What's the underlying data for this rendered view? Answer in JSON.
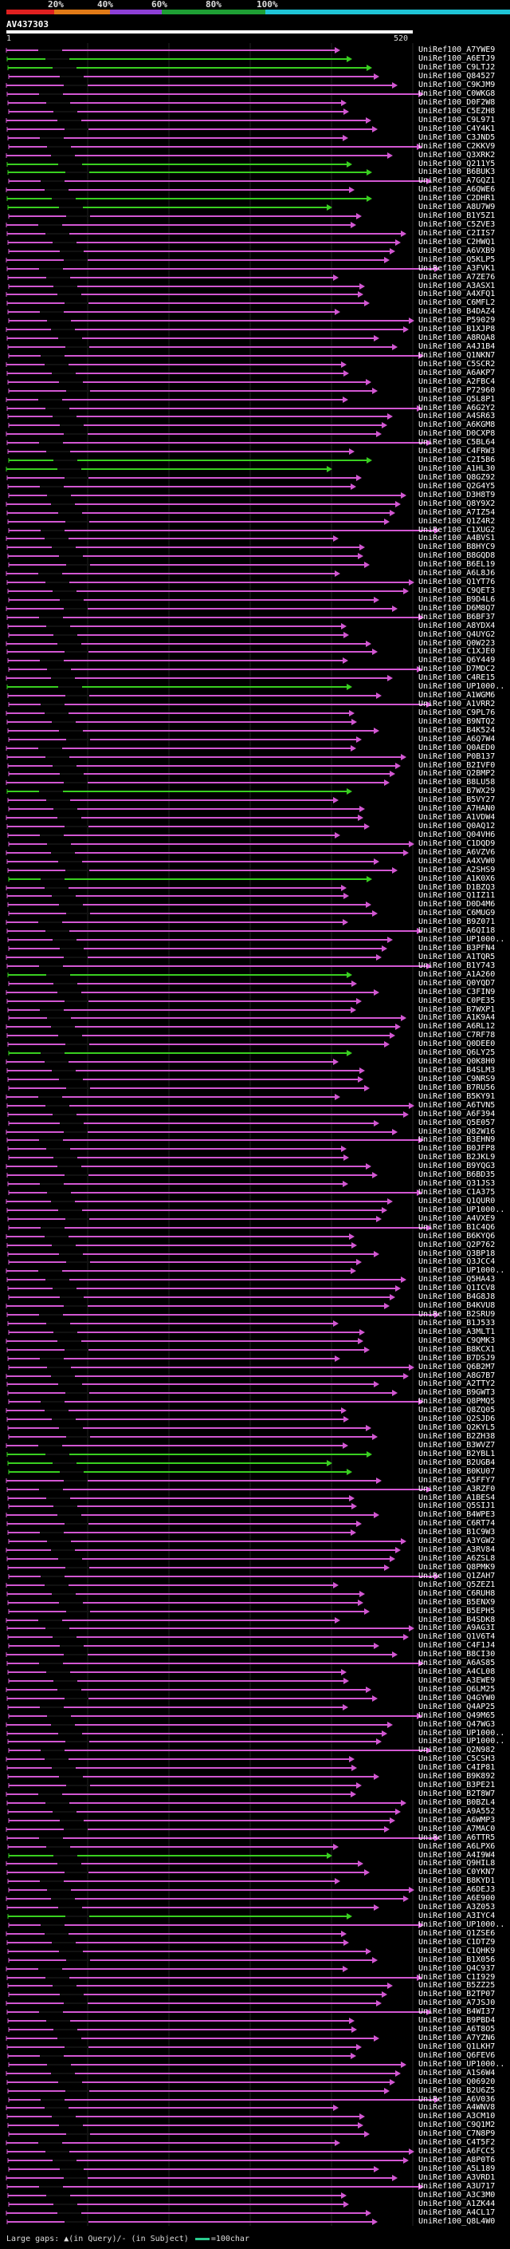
{
  "colors": {
    "background": "#000000",
    "hit_line": "#d257d2",
    "green_line": "#39cf20",
    "query_bar": "#ffffff",
    "identity_red": "#e02020",
    "identity_orange": "#e07a17",
    "identity_purple": "#8d3fd6",
    "identity_green": "#1e9e34",
    "identity_cyan": "#1fc4d6",
    "legend_green": "#2acb8e"
  },
  "identity_scale": [
    "20%",
    "40%",
    "60%",
    "80%",
    "100%"
  ],
  "query": {
    "id": "AV437303",
    "range_start": "1",
    "range_end": "520"
  },
  "hits": [
    "UniRef100_A7YWE9",
    "UniRef100_A6ETJ9",
    "UniRef100_C9LTJ2",
    "UniRef100_Q84527",
    "UniRef100_C9KJM9",
    "UniRef100_C0WKG8",
    "UniRef100_D0F2W8",
    "UniRef100_C5EZH8",
    "UniRef100_C9L971",
    "UniRef100_C4Y4K1",
    "UniRef100_C3JND5",
    "UniRef100_C2KKV9",
    "UniRef100_Q3XRK2",
    "UniRef100_Q211Y5",
    "UniRef100_B6BUK3",
    "UniRef100_A7GQZ1",
    "UniRef100_A6QWE6",
    "UniRef100_C2DHR1",
    "UniRef100_A8U7W9",
    "UniRef100_B1Y5Z1",
    "UniRef100_C5ZVE3",
    "UniRef100_C2IIS7",
    "UniRef100_C2HWQ1",
    "UniRef100_A6VXB9",
    "UniRef100_Q5KLP5",
    "UniRef100_A3FVK1",
    "UniRef100_A7ZE76",
    "UniRef100_A3ASX1",
    "UniRef100_A4XFQ1",
    "UniRef100_C6MFL2",
    "UniRef100_B4DAZ4",
    "UniRef100_P59029",
    "UniRef100_B1XJP8",
    "UniRef100_A8RQA8",
    "UniRef100_A4J1B4",
    "UniRef100_Q1NKN7",
    "UniRef100_C5SCR2",
    "UniRef100_A6AKP7",
    "UniRef100_A2FBC4",
    "UniRef100_P72960",
    "UniRef100_Q5L8P1",
    "UniRef100_A6G2Y2",
    "UniRef100_A4SR63",
    "UniRef100_A6KGM8",
    "UniRef100_D0CXP8",
    "UniRef100_C5BL64",
    "UniRef100_C4FRW3",
    "UniRef100_C2I5B6",
    "UniRef100_A1HL30",
    "UniRef100_Q8GZ92",
    "UniRef100_Q2G4Y5",
    "UniRef100_D3H8T9",
    "UniRef100_Q8Y9X2",
    "UniRef100_A7IZ54",
    "UniRef100_Q1Z4R2",
    "UniRef100_C1XUG2",
    "UniRef100_A4BVS1",
    "UniRef100_B8HYC9",
    "UniRef100_B8GQD8",
    "UniRef100_B6EL19",
    "UniRef100_A6L8J6",
    "UniRef100_Q1YT76",
    "UniRef100_C9QET3",
    "UniRef100_B9D4L6",
    "UniRef100_D6M8Q7",
    "UniRef100_B6BF37",
    "UniRef100_A8YDX4",
    "UniRef100_Q4UYG2",
    "UniRef100_Q0W223",
    "UniRef100_C1XJE0",
    "UniRef100_Q6Y449",
    "UniRef100_D7MDC2",
    "UniRef100_C4RE15",
    "UniRef100_UP1000..",
    "UniRef100_A1WGM6",
    "UniRef100_A1VRR2",
    "UniRef100_C9PL76",
    "UniRef100_B9NTQ2",
    "UniRef100_B4K524",
    "UniRef100_A6Q7W4",
    "UniRef100_Q0AED0",
    "UniRef100_P0B137",
    "UniRef100_B2IVF0",
    "UniRef100_Q2BMP2",
    "UniRef100_B8LU58",
    "UniRef100_B7WX29",
    "UniRef100_B5VY27",
    "UniRef100_A7HAN0",
    "UniRef100_A1VDW4",
    "UniRef100_Q0AQ12",
    "UniRef100_Q04VH6",
    "UniRef100_C1DQD9",
    "UniRef100_A6VZV6",
    "UniRef100_A4XVW0",
    "UniRef100_A2SHS9",
    "UniRef100_A1K0X6",
    "UniRef100_D1BZQ3",
    "UniRef100_Q1IZ11",
    "UniRef100_D0D4M6",
    "UniRef100_C6MUG9",
    "UniRef100_B9Z071",
    "UniRef100_A6QI18",
    "UniRef100_UP1000..",
    "UniRef100_B3PFN4",
    "UniRef100_A1TQR5",
    "UniRef100_B1Y743",
    "UniRef100_A1A260",
    "UniRef100_Q0YQD7",
    "UniRef100_C3FIN9",
    "UniRef100_C0PE35",
    "UniRef100_B7WXP1",
    "UniRef100_A1K9A4",
    "UniRef100_A6RL12",
    "UniRef100_C7RF78",
    "UniRef100_Q0DEE0",
    "UniRef100_Q6LY25",
    "UniRef100_Q0K8H0",
    "UniRef100_B4SLM3",
    "UniRef100_C9NRS9",
    "UniRef100_B7RU56",
    "UniRef100_B5KY91",
    "UniRef100_A6TVN5",
    "UniRef100_A6F394",
    "UniRef100_Q5E057",
    "UniRef100_Q82W16",
    "UniRef100_B3EHN9",
    "UniRef100_B0JFP8",
    "UniRef100_B2JKL9",
    "UniRef100_B9YQG3",
    "UniRef100_B6BD35",
    "UniRef100_Q31JS3",
    "UniRef100_C1A375",
    "UniRef100_Q1QUR0",
    "UniRef100_UP1000..",
    "UniRef100_A4VXE9",
    "UniRef100_B1C4Q6",
    "UniRef100_B6KYQ6",
    "UniRef100_Q2P762",
    "UniRef100_Q3BP18",
    "UniRef100_Q3JCC4",
    "UniRef100_UP1000..",
    "UniRef100_Q5HA43",
    "UniRef100_Q1ICV8",
    "UniRef100_B4G8J8",
    "UniRef100_B4KVU8",
    "UniRef100_B2SRU9",
    "UniRef100_B1J533",
    "UniRef100_A3MLT1",
    "UniRef100_C9QMK3",
    "UniRef100_B8KCX1",
    "UniRef100_B7DSJ9",
    "UniRef100_Q6B2M7",
    "UniRef100_A8G7B7",
    "UniRef100_A2TTY2",
    "UniRef100_B9GWT3",
    "UniRef100_Q8PMQ5",
    "UniRef100_Q8ZQ05",
    "UniRef100_Q2SJD6",
    "UniRef100_Q2KYL5",
    "UniRef100_B2ZH38",
    "UniRef100_B3WVZ7",
    "UniRef100_B2YBL1",
    "UniRef100_B2UGB4",
    "UniRef100_B0KU07",
    "UniRef100_A5FFY7",
    "UniRef100_A3RZF0",
    "UniRef100_A1BES4",
    "UniRef100_Q5SIJ1",
    "UniRef100_B4WPE3",
    "UniRef100_C6RT74",
    "UniRef100_B1C9W3",
    "UniRef100_A3YGW2",
    "UniRef100_A3RV84",
    "UniRef100_A6ZSL8",
    "UniRef100_Q8PMK9",
    "UniRef100_Q1ZAH7",
    "UniRef100_Q5ZEZ1",
    "UniRef100_C6RUH8",
    "UniRef100_B5ENX9",
    "UniRef100_B5EPH5",
    "UniRef100_B4SDK8",
    "UniRef100_A9AG3I",
    "UniRef100_Q1V6T4",
    "UniRef100_C4F1J4",
    "UniRef100_B8CI30",
    "UniRef100_A6AS85",
    "UniRef100_A4CL08",
    "UniRef100_A3EWE9",
    "UniRef100_Q6LM25",
    "UniRef100_Q4GYW0",
    "UniRef100_Q4AP25",
    "UniRef100_Q49M65",
    "UniRef100_Q47WG3",
    "UniRef100_UP1000..",
    "UniRef100_UP1000..",
    "UniRef100_Q2N982",
    "UniRef100_C5CSH3",
    "UniRef100_C4IP81",
    "UniRef100_B9K892",
    "UniRef100_B3PE21",
    "UniRef100_B2T8W7",
    "UniRef100_B0BZL4",
    "UniRef100_A9A552",
    "UniRef100_A6WMP3",
    "UniRef100_A7MAC0",
    "UniRef100_A6TTR5",
    "UniRef100_A6LPX6",
    "UniRef100_A4I9W4",
    "UniRef100_Q9HIL8",
    "UniRef100_C0YKN7",
    "UniRef100_B8KYD1",
    "UniRef100_A6DEJ3",
    "UniRef100_A6E900",
    "UniRef100_A3Z053",
    "UniRef100_A3IYC4",
    "UniRef100_UP1000..",
    "UniRef100_Q1ZSE6",
    "UniRef100_C1DTZ9",
    "UniRef100_C1QHK9",
    "UniRef100_B1X056",
    "UniRef100_Q4C937",
    "UniRef100_C1I929",
    "UniRef100_B5ZZ25",
    "UniRef100_B2TP07",
    "UniRef100_A7JSJ0",
    "UniRef100_B4WI37",
    "UniRef100_B9PBD4",
    "UniRef100_A6T8O5",
    "UniRef100_A7YZN6",
    "UniRef100_Q1LKH7",
    "UniRef100_Q6FEV6",
    "UniRef100_UP1000..",
    "UniRef100_A1S6W4",
    "UniRef100_Q06920",
    "UniRef100_B2U6Z5",
    "UniRef100_A6V036",
    "UniRef100_A4WNV8",
    "UniRef100_A3CM10",
    "UniRef100_C9Q1M2",
    "UniRef100_C7N8P9",
    "UniRef100_C4T5F2",
    "UniRef100_A6FCC5",
    "UniRef100_A8P0T6",
    "UniRef100_A5L189",
    "UniRef100_A3VRD1",
    "UniRef100_A3U717",
    "UniRef100_A3C3M0",
    "UniRef100_A1ZK44",
    "UniRef100_A4CL17",
    "UniRef100_Q8L4W0"
  ],
  "legend": {
    "text_left": "Large gaps: ▲(in Query)/- (in Subject)",
    "text_right": "=100char"
  }
}
